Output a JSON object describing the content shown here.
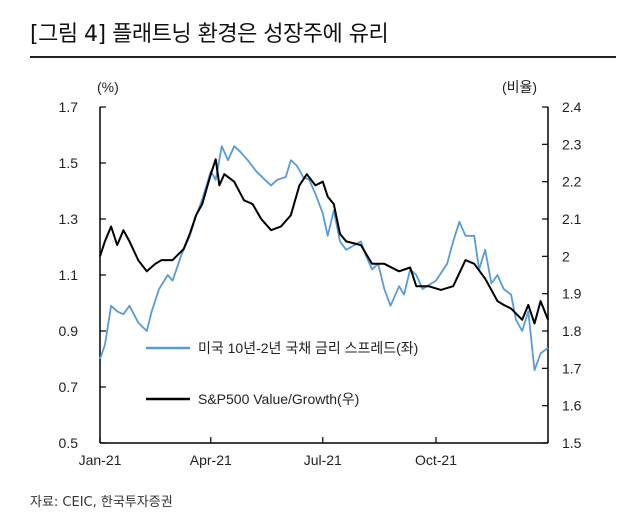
{
  "title": "[그림 4] 플래트닝 환경은 성장주에 유리",
  "source": "자료: CEIC, 한국투자증권",
  "chart_data": {
    "type": "line",
    "left_axis": {
      "unit_label": "(%)",
      "ylim": [
        0.5,
        1.7
      ],
      "ticks": [
        "0.5",
        "0.7",
        "0.9",
        "1.1",
        "1.3",
        "1.5",
        "1.7"
      ]
    },
    "right_axis": {
      "unit_label": "(비율)",
      "ylim": [
        1.5,
        2.4
      ],
      "ticks": [
        "1.5",
        "1.6",
        "1.7",
        "1.8",
        "1.9",
        "2",
        "2.1",
        "2.2",
        "2.3",
        "2.4"
      ]
    },
    "x_ticks": [
      {
        "label": "Jan-21",
        "date": "2021-01-01"
      },
      {
        "label": "Apr-21",
        "date": "2021-04-01"
      },
      {
        "label": "Jul-21",
        "date": "2021-07-01"
      },
      {
        "label": "Oct-21",
        "date": "2021-10-01"
      }
    ],
    "xlim": [
      "2021-01-01",
      "2021-12-31"
    ],
    "grid": false,
    "legend_placement": "bottom-left inside",
    "series": [
      {
        "name": "미국 10년-2년 국채 금리 스프레드(좌)",
        "axis": "left",
        "color": "#5b9bd5",
        "points": [
          [
            "2021-01-01",
            0.8
          ],
          [
            "2021-01-05",
            0.85
          ],
          [
            "2021-01-10",
            0.99
          ],
          [
            "2021-01-15",
            0.97
          ],
          [
            "2021-01-20",
            0.96
          ],
          [
            "2021-01-25",
            0.99
          ],
          [
            "2021-02-01",
            0.93
          ],
          [
            "2021-02-08",
            0.9
          ],
          [
            "2021-02-12",
            0.97
          ],
          [
            "2021-02-18",
            1.05
          ],
          [
            "2021-02-25",
            1.1
          ],
          [
            "2021-03-01",
            1.08
          ],
          [
            "2021-03-08",
            1.17
          ],
          [
            "2021-03-15",
            1.24
          ],
          [
            "2021-03-20",
            1.31
          ],
          [
            "2021-03-25",
            1.37
          ],
          [
            "2021-04-01",
            1.47
          ],
          [
            "2021-04-05",
            1.44
          ],
          [
            "2021-04-10",
            1.56
          ],
          [
            "2021-04-15",
            1.51
          ],
          [
            "2021-04-20",
            1.56
          ],
          [
            "2021-04-25",
            1.54
          ],
          [
            "2021-05-01",
            1.51
          ],
          [
            "2021-05-08",
            1.47
          ],
          [
            "2021-05-15",
            1.44
          ],
          [
            "2021-05-20",
            1.42
          ],
          [
            "2021-05-25",
            1.44
          ],
          [
            "2021-06-01",
            1.45
          ],
          [
            "2021-06-05",
            1.51
          ],
          [
            "2021-06-10",
            1.49
          ],
          [
            "2021-06-15",
            1.45
          ],
          [
            "2021-06-20",
            1.44
          ],
          [
            "2021-06-25",
            1.39
          ],
          [
            "2021-07-01",
            1.32
          ],
          [
            "2021-07-05",
            1.24
          ],
          [
            "2021-07-10",
            1.33
          ],
          [
            "2021-07-15",
            1.22
          ],
          [
            "2021-07-20",
            1.19
          ],
          [
            "2021-08-01",
            1.22
          ],
          [
            "2021-08-05",
            1.17
          ],
          [
            "2021-08-10",
            1.12
          ],
          [
            "2021-08-15",
            1.14
          ],
          [
            "2021-08-20",
            1.05
          ],
          [
            "2021-08-25",
            0.99
          ],
          [
            "2021-09-01",
            1.06
          ],
          [
            "2021-09-05",
            1.03
          ],
          [
            "2021-09-10",
            1.12
          ],
          [
            "2021-09-15",
            1.1
          ],
          [
            "2021-09-20",
            1.05
          ],
          [
            "2021-10-01",
            1.08
          ],
          [
            "2021-10-10",
            1.14
          ],
          [
            "2021-10-15",
            1.22
          ],
          [
            "2021-10-20",
            1.29
          ],
          [
            "2021-10-25",
            1.24
          ],
          [
            "2021-11-01",
            1.24
          ],
          [
            "2021-11-05",
            1.12
          ],
          [
            "2021-11-10",
            1.19
          ],
          [
            "2021-11-15",
            1.07
          ],
          [
            "2021-11-20",
            1.1
          ],
          [
            "2021-11-25",
            1.05
          ],
          [
            "2021-12-01",
            1.03
          ],
          [
            "2021-12-05",
            0.94
          ],
          [
            "2021-12-10",
            0.9
          ],
          [
            "2021-12-15",
            0.97
          ],
          [
            "2021-12-20",
            0.76
          ],
          [
            "2021-12-25",
            0.82
          ],
          [
            "2021-12-31",
            0.84
          ]
        ]
      },
      {
        "name": "S&P500 Value/Growth(우)",
        "axis": "right",
        "color": "#000000",
        "points": [
          [
            "2021-01-01",
            2.0
          ],
          [
            "2021-01-05",
            2.04
          ],
          [
            "2021-01-10",
            2.08
          ],
          [
            "2021-01-15",
            2.03
          ],
          [
            "2021-01-20",
            2.07
          ],
          [
            "2021-01-25",
            2.04
          ],
          [
            "2021-02-01",
            1.99
          ],
          [
            "2021-02-08",
            1.96
          ],
          [
            "2021-02-15",
            1.98
          ],
          [
            "2021-02-20",
            1.99
          ],
          [
            "2021-03-01",
            1.99
          ],
          [
            "2021-03-10",
            2.02
          ],
          [
            "2021-03-15",
            2.06
          ],
          [
            "2021-03-20",
            2.11
          ],
          [
            "2021-03-25",
            2.14
          ],
          [
            "2021-04-01",
            2.22
          ],
          [
            "2021-04-05",
            2.26
          ],
          [
            "2021-04-08",
            2.19
          ],
          [
            "2021-04-12",
            2.22
          ],
          [
            "2021-04-20",
            2.2
          ],
          [
            "2021-04-28",
            2.15
          ],
          [
            "2021-05-05",
            2.14
          ],
          [
            "2021-05-12",
            2.1
          ],
          [
            "2021-05-20",
            2.07
          ],
          [
            "2021-05-28",
            2.08
          ],
          [
            "2021-06-05",
            2.11
          ],
          [
            "2021-06-12",
            2.19
          ],
          [
            "2021-06-18",
            2.22
          ],
          [
            "2021-06-25",
            2.19
          ],
          [
            "2021-07-01",
            2.2
          ],
          [
            "2021-07-05",
            2.16
          ],
          [
            "2021-07-10",
            2.14
          ],
          [
            "2021-07-15",
            2.06
          ],
          [
            "2021-07-20",
            2.04
          ],
          [
            "2021-08-01",
            2.03
          ],
          [
            "2021-08-10",
            1.98
          ],
          [
            "2021-08-20",
            1.98
          ],
          [
            "2021-09-01",
            1.96
          ],
          [
            "2021-09-10",
            1.97
          ],
          [
            "2021-09-15",
            1.92
          ],
          [
            "2021-09-25",
            1.92
          ],
          [
            "2021-10-05",
            1.91
          ],
          [
            "2021-10-15",
            1.92
          ],
          [
            "2021-10-25",
            1.99
          ],
          [
            "2021-11-01",
            1.98
          ],
          [
            "2021-11-10",
            1.94
          ],
          [
            "2021-11-20",
            1.88
          ],
          [
            "2021-11-25",
            1.87
          ],
          [
            "2021-12-01",
            1.86
          ],
          [
            "2021-12-10",
            1.83
          ],
          [
            "2021-12-15",
            1.87
          ],
          [
            "2021-12-20",
            1.82
          ],
          [
            "2021-12-25",
            1.88
          ],
          [
            "2021-12-31",
            1.83
          ]
        ]
      }
    ]
  }
}
